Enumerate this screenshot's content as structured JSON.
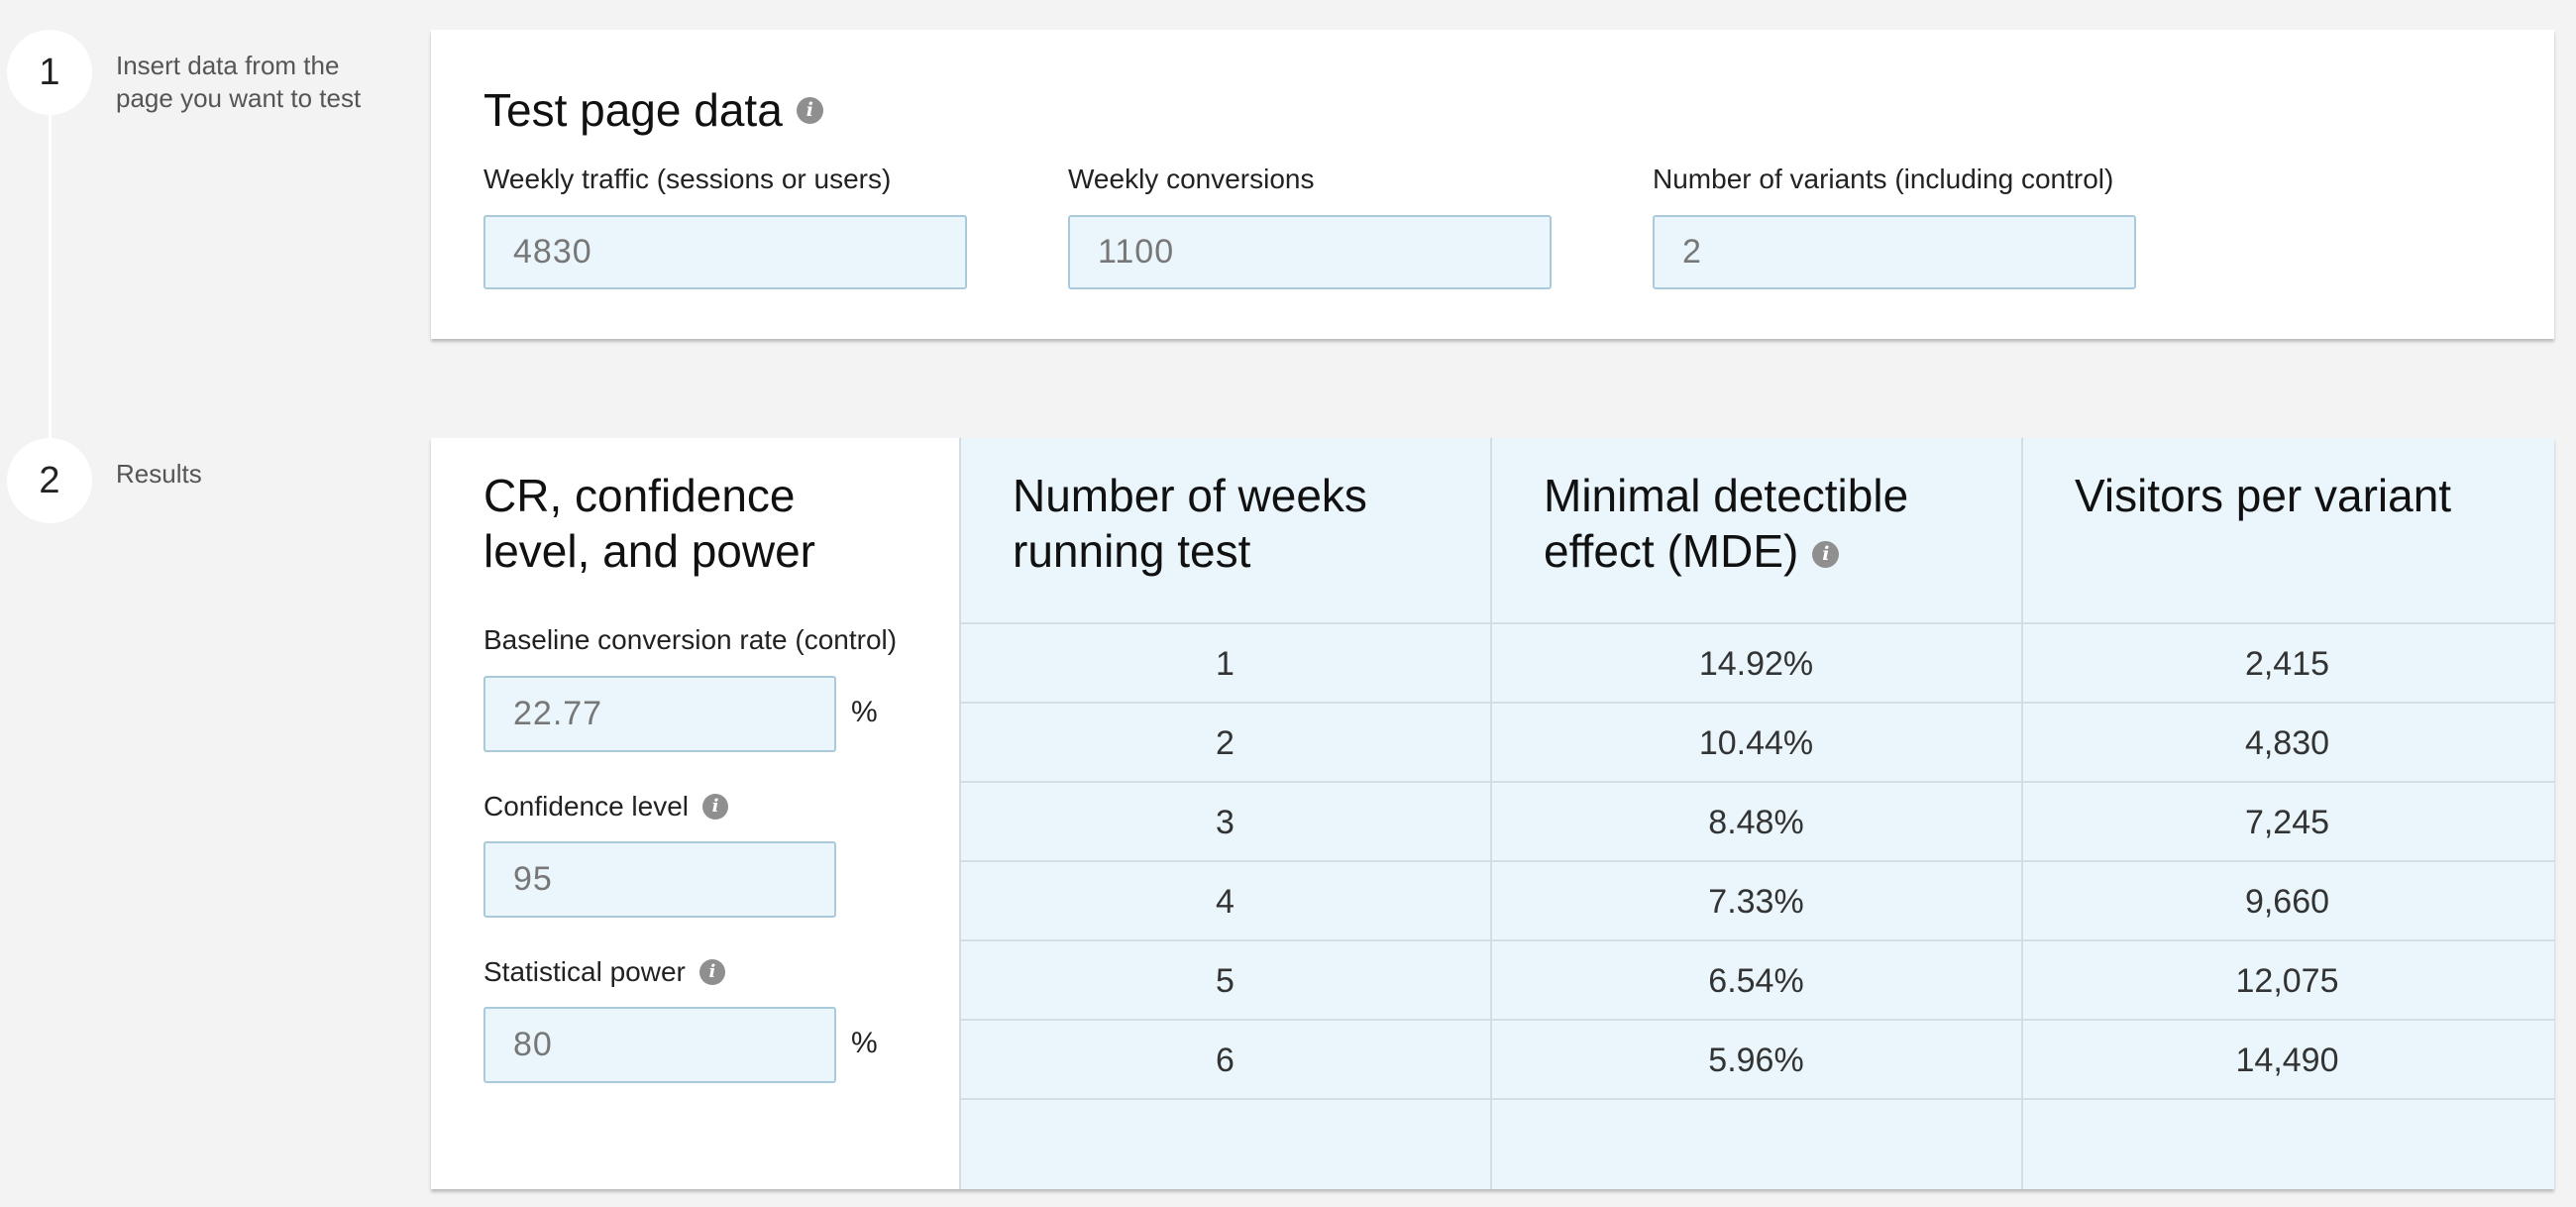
{
  "steps": [
    {
      "number": "1",
      "description": "Insert data from the page you want to test"
    },
    {
      "number": "2",
      "description": "Results"
    }
  ],
  "test_page": {
    "title": "Test page data",
    "fields": [
      {
        "label": "Weekly traffic (sessions or users)",
        "value": "4830"
      },
      {
        "label": "Weekly conversions",
        "value": "1100"
      },
      {
        "label": "Number of variants (including control)",
        "value": "2"
      }
    ]
  },
  "settings": {
    "title": "CR, confidence level, and power",
    "baseline": {
      "label": "Baseline conversion rate (control)",
      "value": "22.77",
      "unit": "%"
    },
    "confidence": {
      "label": "Confidence level",
      "value": "95"
    },
    "power": {
      "label": "Statistical power",
      "value": "80",
      "unit": "%"
    }
  },
  "results": {
    "headers": {
      "weeks": "Number of weeks running test",
      "mde": "Minimal detectible effect (MDE)",
      "visitors": "Visitors per variant"
    },
    "rows": [
      {
        "weeks": "1",
        "mde": "14.92%",
        "visitors": "2,415"
      },
      {
        "weeks": "2",
        "mde": "10.44%",
        "visitors": "4,830"
      },
      {
        "weeks": "3",
        "mde": "8.48%",
        "visitors": "7,245"
      },
      {
        "weeks": "4",
        "mde": "7.33%",
        "visitors": "9,660"
      },
      {
        "weeks": "5",
        "mde": "6.54%",
        "visitors": "12,075"
      },
      {
        "weeks": "6",
        "mde": "5.96%",
        "visitors": "14,490"
      }
    ]
  },
  "icons": {
    "info": "info-icon"
  },
  "colors": {
    "background": "#f3f3f3",
    "input_background": "#eaf6fc",
    "input_border": "#aacadb",
    "table_background": "#eaf6fc",
    "info_icon": "#8f8f8f"
  }
}
